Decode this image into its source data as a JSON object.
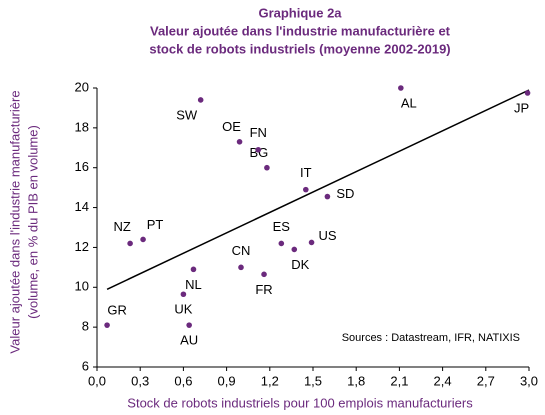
{
  "chart_data": {
    "type": "scatter",
    "title": [
      "Graphique 2a",
      "Valeur ajoutée dans l'industrie manufacturière et",
      "stock de robots industriels (moyenne 2002-2019)"
    ],
    "ylabel": [
      "Valeur ajoutée dans l'industrie manufacturière",
      "(volume, en % du PIB en volume)"
    ],
    "xlabel": "Stock de robots industriels pour 100 emplois manufacturiers",
    "annotation": "Sources : Datastream,  IFR, NATIXIS",
    "color": "#6b2a7d",
    "labels": [
      "GR",
      "AU",
      "UK",
      "NL",
      "CN",
      "FR",
      "NZ",
      "PT",
      "ES",
      "DK",
      "US",
      "SD",
      "IT",
      "BG",
      "FN",
      "OE",
      "SW",
      "AL",
      "JP"
    ],
    "x": [
      0.07,
      0.64,
      0.6,
      0.67,
      1.0,
      1.16,
      0.23,
      0.32,
      1.28,
      1.37,
      1.49,
      1.6,
      1.45,
      1.18,
      1.12,
      0.99,
      0.72,
      2.11,
      2.99
    ],
    "y": [
      8.1,
      8.1,
      9.65,
      10.9,
      11.0,
      10.65,
      12.2,
      12.4,
      12.2,
      11.9,
      12.25,
      14.55,
      14.9,
      16.0,
      16.9,
      17.3,
      19.4,
      20.0,
      19.75
    ],
    "trendline": {
      "x": [
        0.07,
        3.0
      ],
      "y": [
        9.9,
        19.9
      ]
    },
    "xlim": [
      0,
      3
    ],
    "xticks": [
      {
        "value": 0,
        "label": "0,0"
      },
      {
        "value": 0.3,
        "label": "0,3"
      },
      {
        "value": 0.6,
        "label": "0,6"
      },
      {
        "value": 0.9,
        "label": "0,9"
      },
      {
        "value": 1.2,
        "label": "1,2"
      },
      {
        "value": 1.5,
        "label": "1,5"
      },
      {
        "value": 1.8,
        "label": "1,8"
      },
      {
        "value": 2.1,
        "label": "2,1"
      },
      {
        "value": 2.4,
        "label": "2,4"
      },
      {
        "value": 2.7,
        "label": "2,7"
      },
      {
        "value": 3.0,
        "label": "3,0"
      }
    ],
    "ylim": [
      6,
      20
    ],
    "yticks": [
      6,
      8,
      10,
      12,
      14,
      16,
      18,
      20
    ],
    "grid": false
  }
}
